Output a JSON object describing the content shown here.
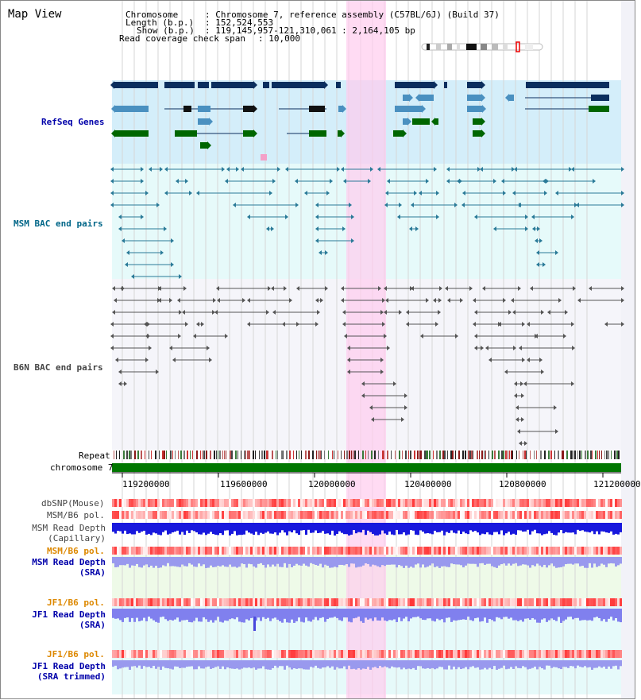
{
  "view": {
    "title": "Map View"
  },
  "header": {
    "chromosome_label": "Chromosome",
    "chromosome_value": ": Chromosome 7, reference assembly (C57BL/6J) (Build 37)",
    "length_label": "Length (b.p.)",
    "length_value": ": 152,524,553",
    "show_label": "Show (b.p.)",
    "show_value": ": 119,145,957-121,310,061 : 2,164,105 bp",
    "coverage_label": "Read coverage check span",
    "coverage_value": ": 10,000"
  },
  "tracks": {
    "refseq": "RefSeq Genes",
    "msm_bac": "MSM BAC end pairs",
    "b6n_bac": "B6N BAC end pairs",
    "repeat": "Repeat",
    "chromosome": "chromosome 7",
    "dbsnp": "dbSNP(Mouse)",
    "msm_b6_pol_1": "MSM/B6 pol.",
    "msm_depth_cap_1": "MSM Read Depth",
    "msm_depth_cap_2": "(Capillary)",
    "msm_b6_pol_2": "MSM/B6 pol.",
    "msm_depth_sra_1": "MSM Read Depth",
    "msm_depth_sra_2": "(SRA)",
    "jf1_b6_pol_1": "JF1/B6 pol.",
    "jf1_depth_sra_1": "JF1 Read Depth",
    "jf1_depth_sra_2": "(SRA)",
    "jf1_b6_pol_2": "JF1/B6 pol.",
    "jf1_depth_trim_1": "JF1 Read Depth",
    "jf1_depth_trim_2": "(SRA trimmed)"
  },
  "axis": {
    "ticks": [
      "119200000",
      "119600000",
      "120000000",
      "120400000",
      "120800000",
      "121200000"
    ]
  },
  "colors": {
    "refseq_label": "#0000aa",
    "msm_label": "#006688",
    "b6n_label": "#444444",
    "orange_label": "#dd8800",
    "blue_label": "#0000aa",
    "highlight": "#ffccee",
    "refseq_bg": "#d4eefa",
    "msm_bg": "#e6fafa",
    "b6n_bg": "#f5f5fa",
    "chromosome_bar": "#007700"
  }
}
